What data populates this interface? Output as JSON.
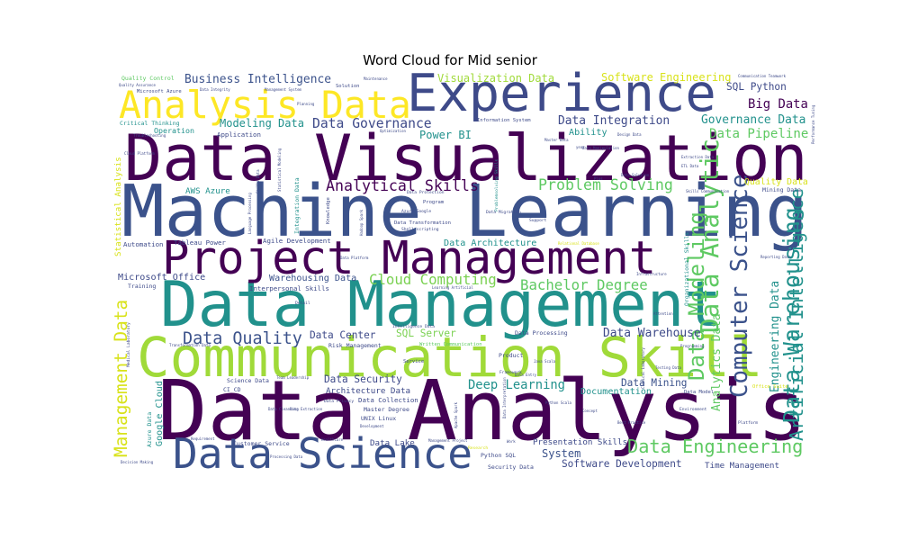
{
  "chart_data": {
    "type": "wordcloud",
    "title": "Word Cloud for Mid senior",
    "words": [
      {
        "text": "Data Analysis",
        "weight": 1.0,
        "color": "#440154"
      },
      {
        "text": "Machine Learning",
        "weight": 0.92,
        "color": "#3b528b"
      },
      {
        "text": "Data Visualization",
        "weight": 0.88,
        "color": "#440154"
      },
      {
        "text": "Data Management",
        "weight": 0.75,
        "color": "#21918c"
      },
      {
        "text": "Communication Skill",
        "weight": 0.66,
        "color": "#a0da39"
      },
      {
        "text": "Experience",
        "weight": 0.62,
        "color": "#3e4a89"
      },
      {
        "text": "Project Management",
        "weight": 0.55,
        "color": "#440154"
      },
      {
        "text": "Data Science",
        "weight": 0.5,
        "color": "#3b528b"
      },
      {
        "text": "Analysis Data",
        "weight": 0.45,
        "color": "#fde725"
      },
      {
        "text": "Data Analytic",
        "weight": 0.3,
        "color": "#5ec962"
      },
      {
        "text": "Computer Science",
        "weight": 0.28,
        "color": "#3b528b"
      },
      {
        "text": "Data Warehousing",
        "weight": 0.27,
        "color": "#21918c"
      },
      {
        "text": "Data Modeling",
        "weight": 0.26,
        "color": "#5ec962"
      },
      {
        "text": "Data Engineering",
        "weight": 0.22,
        "color": "#5ec962"
      },
      {
        "text": "Artificial Intelligence",
        "weight": 0.22,
        "color": "#21918c"
      },
      {
        "text": "Management Data",
        "weight": 0.21,
        "color": "#d8e219"
      },
      {
        "text": "Data Quality",
        "weight": 0.2,
        "color": "#3b528b"
      },
      {
        "text": "Analytical Skills",
        "weight": 0.18,
        "color": "#440154"
      },
      {
        "text": "Problem Solving",
        "weight": 0.18,
        "color": "#5ec962"
      },
      {
        "text": "Bachelor Degree",
        "weight": 0.17,
        "color": "#5ec962"
      },
      {
        "text": "Cloud Computing",
        "weight": 0.17,
        "color": "#7ad151"
      },
      {
        "text": "Data Pipeline",
        "weight": 0.16,
        "color": "#5ec962"
      },
      {
        "text": "Data Governance",
        "weight": 0.16,
        "color": "#3e4a89"
      },
      {
        "text": "Big Data",
        "weight": 0.16,
        "color": "#440154"
      },
      {
        "text": "Deep Learning",
        "weight": 0.15,
        "color": "#21918c"
      },
      {
        "text": "Data Integration",
        "weight": 0.14,
        "color": "#3e4a89"
      },
      {
        "text": "Business Intelligence",
        "weight": 0.14,
        "color": "#3b528b"
      },
      {
        "text": "Data Warehouse",
        "weight": 0.14,
        "color": "#3e4a89"
      },
      {
        "text": "Governance Data",
        "weight": 0.14,
        "color": "#21918c"
      },
      {
        "text": "Analytics Data",
        "weight": 0.14,
        "color": "#5ec962"
      },
      {
        "text": "Engineering Data",
        "weight": 0.14,
        "color": "#21918c"
      },
      {
        "text": "Modeling Data",
        "weight": 0.13,
        "color": "#21918c"
      },
      {
        "text": "Power BI",
        "weight": 0.13,
        "color": "#21918c"
      },
      {
        "text": "Software Engineering",
        "weight": 0.13,
        "color": "#d8e219"
      },
      {
        "text": "Visualization Data",
        "weight": 0.13,
        "color": "#a0da39"
      },
      {
        "text": "SQL Python",
        "weight": 0.12,
        "color": "#3e4a89"
      },
      {
        "text": "Data Mining",
        "weight": 0.12,
        "color": "#3b528b"
      },
      {
        "text": "Software Development",
        "weight": 0.12,
        "color": "#3e4a89"
      },
      {
        "text": "Data Security",
        "weight": 0.12,
        "color": "#3e4a89"
      },
      {
        "text": "SQL Server",
        "weight": 0.12,
        "color": "#7ad151"
      },
      {
        "text": "Data Center",
        "weight": 0.12,
        "color": "#3e4a89"
      },
      {
        "text": "Microsoft Office",
        "weight": 0.11,
        "color": "#3e4a89"
      },
      {
        "text": "Warehousing Data",
        "weight": 0.11,
        "color": "#3b528b"
      },
      {
        "text": "Data Architecture",
        "weight": 0.11,
        "color": "#21918c"
      },
      {
        "text": "Documentation",
        "weight": 0.11,
        "color": "#21918c"
      },
      {
        "text": "Quality Data",
        "weight": 0.11,
        "color": "#d8e219"
      },
      {
        "text": "Ability",
        "weight": 0.11,
        "color": "#21918c"
      },
      {
        "text": "System",
        "weight": 0.13,
        "color": "#3b528b"
      },
      {
        "text": "Google Cloud",
        "weight": 0.11,
        "color": "#21918c"
      },
      {
        "text": "Presentation Skills",
        "weight": 0.1,
        "color": "#3e4a89"
      },
      {
        "text": "Time Management",
        "weight": 0.1,
        "color": "#3e4a89"
      },
      {
        "text": "Data Lake",
        "weight": 0.1,
        "color": "#3e4a89"
      },
      {
        "text": "AWS Azure",
        "weight": 0.1,
        "color": "#21918c"
      },
      {
        "text": "Architecture Data",
        "weight": 0.1,
        "color": "#3e4a89"
      },
      {
        "text": "Statistical Analysis",
        "weight": 0.1,
        "color": "#d8e219"
      },
      {
        "text": "Data Collection",
        "weight": 0.08,
        "color": "#3e4a89"
      },
      {
        "text": "Operation",
        "weight": 0.09,
        "color": "#21918c"
      },
      {
        "text": "Application",
        "weight": 0.08,
        "color": "#3e4a89"
      },
      {
        "text": "Agile Development",
        "weight": 0.08,
        "color": "#3e4a89"
      },
      {
        "text": "Tableau Power",
        "weight": 0.08,
        "color": "#3e4a89"
      },
      {
        "text": "Automation",
        "weight": 0.08,
        "color": "#3e4a89"
      },
      {
        "text": "Interpersonal Skills",
        "weight": 0.08,
        "color": "#3e4a89"
      },
      {
        "text": "Master Degree",
        "weight": 0.07,
        "color": "#3e4a89"
      },
      {
        "text": "UNIX Linux",
        "weight": 0.07,
        "color": "#3e4a89"
      },
      {
        "text": "Risk Management",
        "weight": 0.07,
        "color": "#3e4a89"
      },
      {
        "text": "Data Processing",
        "weight": 0.07,
        "color": "#3e4a89"
      },
      {
        "text": "Customer Service",
        "weight": 0.07,
        "color": "#3e4a89"
      },
      {
        "text": "Python SQL",
        "weight": 0.07,
        "color": "#3e4a89"
      },
      {
        "text": "Security Data",
        "weight": 0.07,
        "color": "#3e4a89"
      },
      {
        "text": "Critical Thinking",
        "weight": 0.07,
        "color": "#21918c"
      },
      {
        "text": "Quality Control",
        "weight": 0.07,
        "color": "#5ec962"
      },
      {
        "text": "Microsoft Azure",
        "weight": 0.06,
        "color": "#3e4a89"
      },
      {
        "text": "Mining Data",
        "weight": 0.07,
        "color": "#3e4a89"
      },
      {
        "text": "Data Model",
        "weight": 0.06,
        "color": "#3e4a89"
      },
      {
        "text": "Office Suite",
        "weight": 0.06,
        "color": "#d8e219"
      },
      {
        "text": "Organizational Skills",
        "weight": 0.07,
        "color": "#21918c"
      },
      {
        "text": "Integration Data",
        "weight": 0.07,
        "color": "#21918c"
      },
      {
        "text": "Training",
        "weight": 0.07,
        "color": "#3e4a89"
      },
      {
        "text": "Science Data",
        "weight": 0.07,
        "color": "#3e4a89"
      },
      {
        "text": "CI CD",
        "weight": 0.07,
        "color": "#3e4a89"
      },
      {
        "text": "Azure Data",
        "weight": 0.07,
        "color": "#21918c"
      },
      {
        "text": "Product",
        "weight": 0.07,
        "color": "#3e4a89"
      },
      {
        "text": "Solution",
        "weight": 0.06,
        "color": "#3e4a89"
      },
      {
        "text": "Service",
        "weight": 0.06,
        "color": "#3e4a89"
      },
      {
        "text": "Framework",
        "weight": 0.05,
        "color": "#3e4a89"
      },
      {
        "text": "Environment",
        "weight": 0.05,
        "color": "#3e4a89"
      },
      {
        "text": "Platform",
        "weight": 0.05,
        "color": "#3e4a89"
      },
      {
        "text": "Information System",
        "weight": 0.06,
        "color": "#3e4a89"
      },
      {
        "text": "Program",
        "weight": 0.06,
        "color": "#3e4a89"
      },
      {
        "text": "Data Transformation",
        "weight": 0.06,
        "color": "#3e4a89"
      },
      {
        "text": "Azure Google",
        "weight": 0.05,
        "color": "#3e4a89"
      },
      {
        "text": "Shell scripting",
        "weight": 0.05,
        "color": "#3e4a89"
      },
      {
        "text": "Data Migration",
        "weight": 0.05,
        "color": "#3e4a89"
      },
      {
        "text": "Data Protection",
        "weight": 0.05,
        "color": "#3e4a89"
      },
      {
        "text": "Knowledge",
        "weight": 0.06,
        "color": "#3e4a89"
      },
      {
        "text": "Written Communication",
        "weight": 0.06,
        "color": "#5ec962"
      },
      {
        "text": "Research",
        "weight": 0.05,
        "color": "#d8e219"
      },
      {
        "text": "Support",
        "weight": 0.05,
        "color": "#3e4a89"
      },
      {
        "text": "Detail",
        "weight": 0.05,
        "color": "#3e4a89"
      },
      {
        "text": "Data Privacy",
        "weight": 0.05,
        "color": "#3e4a89"
      },
      {
        "text": "Data Cleansing",
        "weight": 0.04,
        "color": "#3e4a89"
      },
      {
        "text": "Data Integrity",
        "weight": 0.04,
        "color": "#3e4a89"
      },
      {
        "text": "Maintenance",
        "weight": 0.04,
        "color": "#3e4a89"
      },
      {
        "text": "Troubleshooting",
        "weight": 0.04,
        "color": "#3e4a89"
      },
      {
        "text": "Quality Assurance",
        "weight": 0.04,
        "color": "#3e4a89"
      },
      {
        "text": "Skills Communication",
        "weight": 0.04,
        "color": "#3e4a89"
      },
      {
        "text": "Reporting Data",
        "weight": 0.04,
        "color": "#3e4a89"
      },
      {
        "text": "Relational Database",
        "weight": 0.04,
        "color": "#d8e219"
      },
      {
        "text": "Infrastructure",
        "weight": 0.04,
        "color": "#3e4a89"
      },
      {
        "text": "Performance Tuning",
        "weight": 0.04,
        "color": "#3e4a89"
      },
      {
        "text": "Communication Teamwork",
        "weight": 0.03,
        "color": "#3e4a89"
      },
      {
        "text": "Data Manipulation",
        "weight": 0.04,
        "color": "#3e4a89"
      },
      {
        "text": "Master Data",
        "weight": 0.04,
        "color": "#3e4a89"
      },
      {
        "text": "ETL Data",
        "weight": 0.04,
        "color": "#3e4a89"
      },
      {
        "text": "Extraction Data",
        "weight": 0.03,
        "color": "#3e4a89"
      },
      {
        "text": "Testing Data",
        "weight": 0.04,
        "color": "#3e4a89"
      },
      {
        "text": "Programming",
        "weight": 0.04,
        "color": "#3e4a89"
      },
      {
        "text": "Attention",
        "weight": 0.04,
        "color": "#3e4a89"
      },
      {
        "text": "Cloud Platform",
        "weight": 0.03,
        "color": "#3e4a89"
      },
      {
        "text": "Statistical Modeling",
        "weight": 0.04,
        "color": "#3e4a89"
      },
      {
        "text": "Skills Data",
        "weight": 0.04,
        "color": "#3e4a89"
      },
      {
        "text": "Hadoop Spark",
        "weight": 0.03,
        "color": "#3e4a89"
      },
      {
        "text": "Apache Spark",
        "weight": 0.03,
        "color": "#3e4a89"
      },
      {
        "text": "Transformation Data",
        "weight": 0.03,
        "color": "#3e4a89"
      },
      {
        "text": "Medical Laboratory",
        "weight": 0.05,
        "color": "#3e4a89"
      },
      {
        "text": "Decision Making",
        "weight": 0.04,
        "color": "#3e4a89"
      },
      {
        "text": "Requirement",
        "weight": 0.04,
        "color": "#3e4a89"
      },
      {
        "text": "Data Extraction",
        "weight": 0.04,
        "color": "#3e4a89"
      },
      {
        "text": "Healthcare",
        "weight": 0.03,
        "color": "#3e4a89"
      },
      {
        "text": "Best Practice",
        "weight": 0.03,
        "color": "#3e4a89"
      },
      {
        "text": "Concept",
        "weight": 0.03,
        "color": "#3e4a89"
      },
      {
        "text": "Work",
        "weight": 0.03,
        "color": "#3e4a89"
      },
      {
        "text": "Data Entry",
        "weight": 0.04,
        "color": "#3e4a89"
      },
      {
        "text": "Java Scala",
        "weight": 0.04,
        "color": "#3e4a89"
      },
      {
        "text": "Data Interpretation",
        "weight": 0.04,
        "color": "#3e4a89"
      },
      {
        "text": "Design Data",
        "weight": 0.03,
        "color": "#3e4a89"
      },
      {
        "text": "Team Leadership",
        "weight": 0.04,
        "color": "#3e4a89"
      },
      {
        "text": "Python Scala",
        "weight": 0.03,
        "color": "#3e4a89"
      },
      {
        "text": "Intelligence Data",
        "weight": 0.05,
        "color": "#3e4a89"
      },
      {
        "text": "Learning Artificial",
        "weight": 0.04,
        "color": "#3e4a89"
      },
      {
        "text": "Clinical Laboratory",
        "weight": 0.04,
        "color": "#3e4a89"
      },
      {
        "text": "Management Project",
        "weight": 0.03,
        "color": "#3e4a89"
      },
      {
        "text": "Processing Data",
        "weight": 0.03,
        "color": "#3e4a89"
      },
      {
        "text": "Data Solution",
        "weight": 0.03,
        "color": "#3e4a89"
      },
      {
        "text": "Development",
        "weight": 0.04,
        "color": "#3e4a89"
      },
      {
        "text": "Management System",
        "weight": 0.04,
        "color": "#3e4a89"
      },
      {
        "text": "Problemsolving Skills",
        "weight": 0.05,
        "color": "#21918c"
      },
      {
        "text": "Language Processing",
        "weight": 0.04,
        "color": "#3e4a89"
      },
      {
        "text": "Plus",
        "weight": 0.03,
        "color": "#3e4a89"
      },
      {
        "text": "year",
        "weight": 0.04,
        "color": "#3e4a89"
      },
      {
        "text": "Planning",
        "weight": 0.03,
        "color": "#3e4a89"
      },
      {
        "text": "Optimization",
        "weight": 0.04,
        "color": "#3e4a89"
      },
      {
        "text": "Data Platform",
        "weight": 0.04,
        "color": "#3e4a89"
      }
    ]
  }
}
